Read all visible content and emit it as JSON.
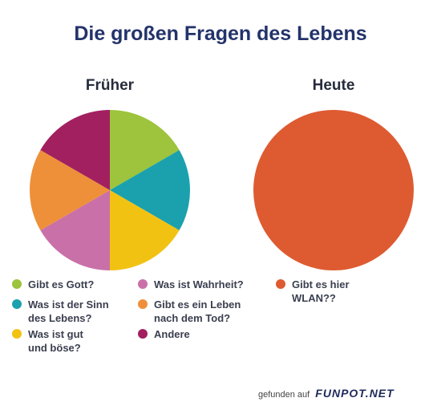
{
  "title": "Die großen Fragen des Lebens",
  "chart_data": [
    {
      "type": "pie",
      "title": "Früher",
      "slices": [
        {
          "label": "Gibt es Gott?",
          "value": 1,
          "color": "#9dc43c"
        },
        {
          "label": "Was ist der Sinn\ndes Lebens?",
          "value": 1,
          "color": "#1ba1ad"
        },
        {
          "label": "Was ist gut\nund böse?",
          "value": 1,
          "color": "#f2c213"
        },
        {
          "label": "Was ist Wahrheit?",
          "value": 1,
          "color": "#c970a9"
        },
        {
          "label": "Gibt es ein Leben\nnach dem Tod?",
          "value": 1,
          "color": "#ed9039"
        },
        {
          "label": "Andere",
          "value": 1,
          "color": "#a22060"
        }
      ]
    },
    {
      "type": "pie",
      "title": "Heute",
      "slices": [
        {
          "label": "Gibt es hier\nWLAN??",
          "value": 1,
          "color": "#de5b31"
        }
      ]
    }
  ],
  "footer": {
    "prefix": "gefunden auf",
    "brand": "FUNPOT.NET"
  }
}
